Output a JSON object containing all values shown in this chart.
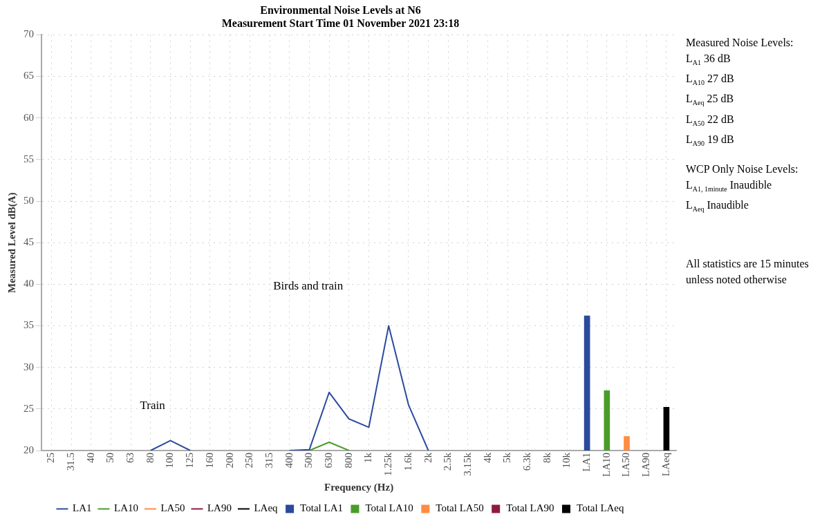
{
  "chart_data": {
    "type": "line",
    "title": "Environmental Noise Levels at N6",
    "subtitle": "Measurement Start Time 01 November 2021 23:18",
    "xlabel": "Frequency (Hz)",
    "ylabel": "Measured Level dB(A)",
    "categories": [
      "25",
      "31.5",
      "40",
      "50",
      "63",
      "80",
      "100",
      "125",
      "160",
      "200",
      "250",
      "315",
      "400",
      "500",
      "630",
      "800",
      "1k",
      "1.25k",
      "1.6k",
      "2k",
      "2.5k",
      "3.15k",
      "4k",
      "5k",
      "6.3k",
      "8k",
      "10k",
      "LA1",
      "LA10",
      "LA50",
      "LA90",
      "LAeq"
    ],
    "series": [
      {
        "name": "LA1",
        "color": "#2a4a9c",
        "values": [
          null,
          null,
          null,
          null,
          null,
          20,
          21.2,
          20,
          null,
          null,
          null,
          null,
          20,
          20.1,
          27,
          23.8,
          22.8,
          35,
          25.5,
          20,
          null,
          null,
          null,
          null,
          null,
          null,
          null,
          null,
          null,
          null,
          null,
          null
        ]
      },
      {
        "name": "LA10",
        "color": "#4a9c2a",
        "values": [
          null,
          null,
          null,
          null,
          null,
          null,
          null,
          null,
          null,
          null,
          null,
          null,
          null,
          20,
          21,
          20,
          null,
          null,
          null,
          null,
          null,
          null,
          null,
          null,
          null,
          null,
          null,
          null,
          null,
          null,
          null,
          null
        ]
      },
      {
        "name": "LA50",
        "color": "#ff8c42",
        "values": [
          null,
          null,
          null,
          null,
          null,
          null,
          null,
          null,
          null,
          null,
          null,
          null,
          null,
          null,
          null,
          null,
          null,
          null,
          null,
          null,
          null,
          null,
          null,
          null,
          null,
          null,
          null,
          null,
          null,
          null,
          null,
          null
        ]
      },
      {
        "name": "LA90",
        "color": "#8c1c3c",
        "values": [
          null,
          null,
          null,
          null,
          null,
          null,
          null,
          null,
          null,
          null,
          null,
          null,
          null,
          null,
          null,
          null,
          null,
          null,
          null,
          null,
          null,
          null,
          null,
          null,
          null,
          null,
          null,
          null,
          null,
          null,
          null,
          null
        ]
      },
      {
        "name": "LAeq",
        "color": "#000000",
        "values": [
          null,
          null,
          null,
          null,
          null,
          null,
          null,
          null,
          null,
          null,
          null,
          null,
          null,
          null,
          null,
          null,
          null,
          null,
          null,
          null,
          null,
          null,
          null,
          null,
          null,
          null,
          null,
          null,
          null,
          null,
          null,
          null
        ]
      },
      {
        "name": "Total LA1",
        "type": "bar",
        "color": "#2a4a9c",
        "values": [
          null,
          null,
          null,
          null,
          null,
          null,
          null,
          null,
          null,
          null,
          null,
          null,
          null,
          null,
          null,
          null,
          null,
          null,
          null,
          null,
          null,
          null,
          null,
          null,
          null,
          null,
          null,
          36.2,
          null,
          null,
          null,
          null
        ]
      },
      {
        "name": "Total LA10",
        "type": "bar",
        "color": "#4a9c2a",
        "values": [
          null,
          null,
          null,
          null,
          null,
          null,
          null,
          null,
          null,
          null,
          null,
          null,
          null,
          null,
          null,
          null,
          null,
          null,
          null,
          null,
          null,
          null,
          null,
          null,
          null,
          null,
          null,
          null,
          27.2,
          null,
          null,
          null
        ]
      },
      {
        "name": "Total LA50",
        "type": "bar",
        "color": "#ff8c42",
        "values": [
          null,
          null,
          null,
          null,
          null,
          null,
          null,
          null,
          null,
          null,
          null,
          null,
          null,
          null,
          null,
          null,
          null,
          null,
          null,
          null,
          null,
          null,
          null,
          null,
          null,
          null,
          null,
          null,
          null,
          21.7,
          null,
          null
        ]
      },
      {
        "name": "Total LA90",
        "type": "bar",
        "color": "#8c1c3c",
        "values": [
          null,
          null,
          null,
          null,
          null,
          null,
          null,
          null,
          null,
          null,
          null,
          null,
          null,
          null,
          null,
          null,
          null,
          null,
          null,
          null,
          null,
          null,
          null,
          null,
          null,
          null,
          null,
          null,
          null,
          null,
          null,
          null
        ]
      },
      {
        "name": "Total LAeq",
        "type": "bar",
        "color": "#000000",
        "values": [
          null,
          null,
          null,
          null,
          null,
          null,
          null,
          null,
          null,
          null,
          null,
          null,
          null,
          null,
          null,
          null,
          null,
          null,
          null,
          null,
          null,
          null,
          null,
          null,
          null,
          null,
          null,
          null,
          null,
          null,
          null,
          25.2
        ]
      }
    ],
    "ylim": [
      20,
      70
    ],
    "yticks": [
      20,
      25,
      30,
      35,
      40,
      45,
      50,
      55,
      60,
      65,
      70
    ],
    "grid": true,
    "legend": "bottom",
    "marker": "none",
    "line_style": "solid",
    "annotations": [
      "Train",
      "Birds and train",
      "Measured Noise Levels:",
      "L$_{A1}$ 36 dB",
      "L$_{A10}$ 27 dB",
      "L$_{Aeq}$ 25 dB",
      "L$_{A50}$ 22 dB",
      "L$_{A90}$ 19 dB",
      "WCP Only Noise Levels:",
      "L$_{A1, 1minute}$ Inaudible",
      "L$_{Aeq}$ Inaudible",
      "All statistics are 15 minutes unless noted otherwise"
    ]
  }
}
